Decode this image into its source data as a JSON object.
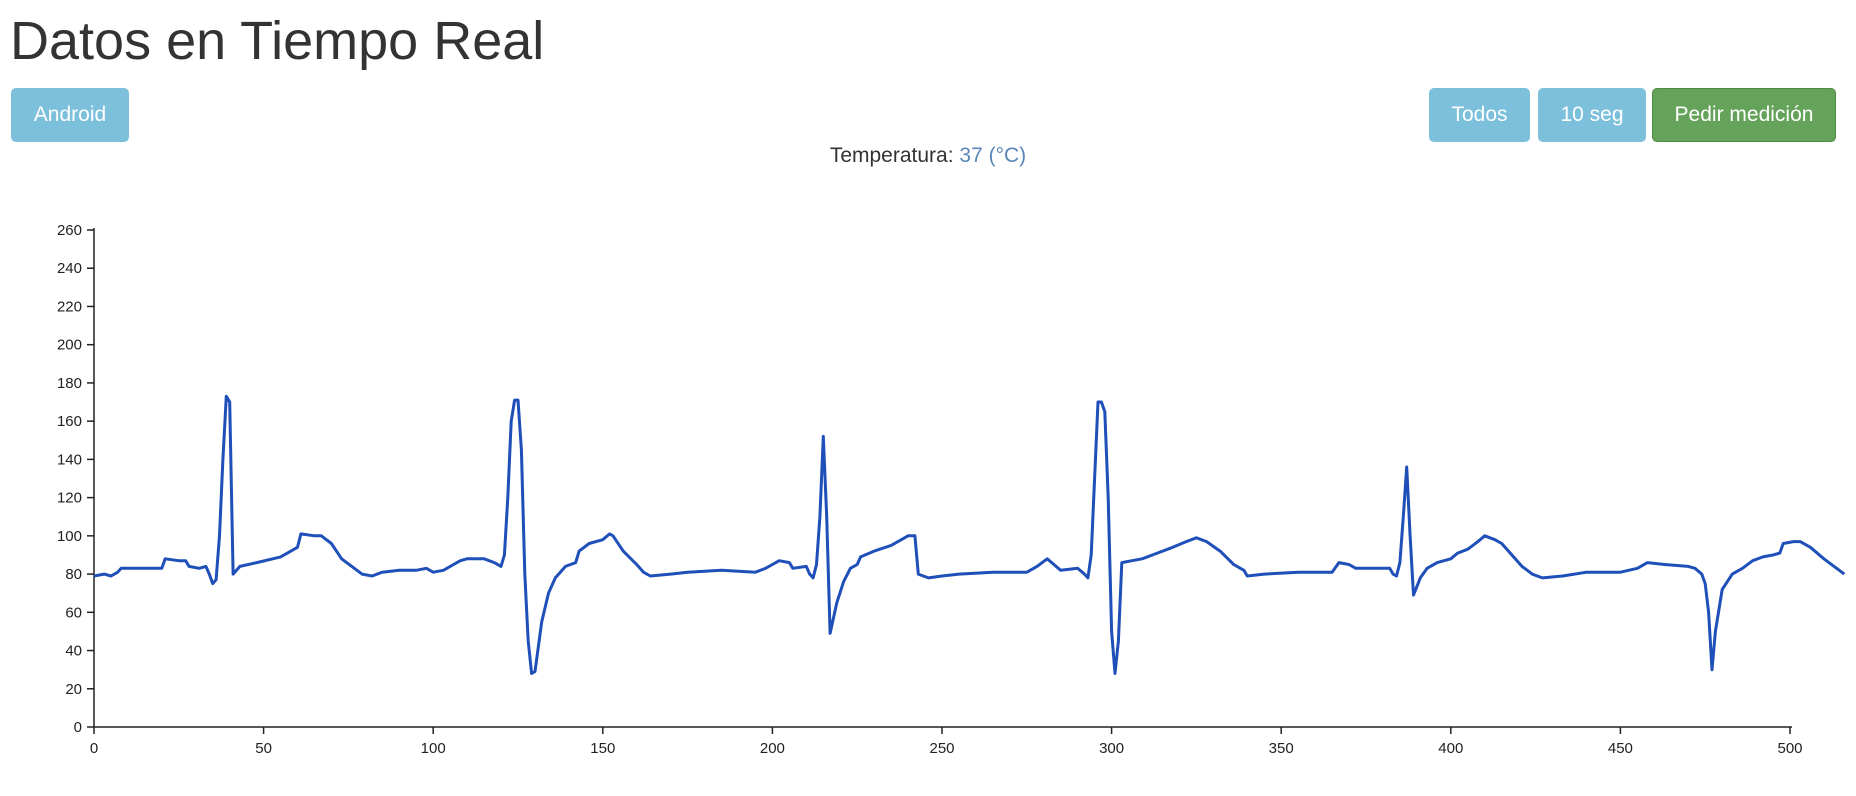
{
  "header": {
    "title": "Datos en Tiempo Real"
  },
  "toolbar": {
    "android_label": "Android",
    "todos_label": "Todos",
    "ten_sec_label": "10 seg",
    "pedir_label": "Pedir medición"
  },
  "temperature": {
    "label": "Temperatura:",
    "value": "37",
    "unit": "(°C)"
  },
  "colors": {
    "info_button": "#7cc0dc",
    "success_button": "#66a35a",
    "line": "#1f4fb8",
    "temp_value": "#5a87b6"
  },
  "chart_data": {
    "type": "line",
    "title": "",
    "xlabel": "",
    "ylabel": "",
    "xlim": [
      0,
      500
    ],
    "ylim": [
      0,
      260
    ],
    "x_ticks": [
      0,
      50,
      100,
      150,
      200,
      250,
      300,
      350,
      400,
      450,
      500
    ],
    "y_ticks": [
      0,
      20,
      40,
      60,
      80,
      100,
      120,
      140,
      160,
      180,
      200,
      220,
      240,
      260
    ],
    "grid": false,
    "series": [
      {
        "points": [
          [
            0,
            79
          ],
          [
            3,
            80
          ],
          [
            5,
            79
          ],
          [
            7,
            81
          ],
          [
            8,
            83
          ],
          [
            10,
            83
          ],
          [
            15,
            83
          ],
          [
            20,
            83
          ],
          [
            21,
            88
          ],
          [
            25,
            87
          ],
          [
            27,
            87
          ],
          [
            28,
            84
          ],
          [
            31,
            83
          ],
          [
            33,
            84
          ],
          [
            34,
            80
          ],
          [
            35,
            75
          ],
          [
            36,
            77
          ],
          [
            37,
            100
          ],
          [
            38,
            140
          ],
          [
            39,
            173
          ],
          [
            40,
            170
          ],
          [
            41,
            80
          ],
          [
            43,
            84
          ],
          [
            48,
            86
          ],
          [
            55,
            89
          ],
          [
            60,
            94
          ],
          [
            61,
            101
          ],
          [
            65,
            100
          ],
          [
            67,
            100
          ],
          [
            70,
            96
          ],
          [
            73,
            88
          ],
          [
            76,
            84
          ],
          [
            79,
            80
          ],
          [
            82,
            79
          ],
          [
            85,
            81
          ],
          [
            90,
            82
          ],
          [
            95,
            82
          ],
          [
            98,
            83
          ],
          [
            100,
            81
          ],
          [
            103,
            82
          ],
          [
            106,
            85
          ],
          [
            108,
            87
          ],
          [
            110,
            88
          ],
          [
            115,
            88
          ],
          [
            118,
            86
          ],
          [
            120,
            84
          ],
          [
            121,
            90
          ],
          [
            122,
            120
          ],
          [
            123,
            160
          ],
          [
            124,
            171
          ],
          [
            125,
            171
          ],
          [
            126,
            145
          ],
          [
            127,
            80
          ],
          [
            128,
            45
          ],
          [
            129,
            28
          ],
          [
            130,
            29
          ],
          [
            132,
            55
          ],
          [
            134,
            70
          ],
          [
            136,
            78
          ],
          [
            139,
            84
          ],
          [
            142,
            86
          ],
          [
            143,
            92
          ],
          [
            146,
            96
          ],
          [
            150,
            98
          ],
          [
            152,
            101
          ],
          [
            153,
            100
          ],
          [
            156,
            92
          ],
          [
            160,
            85
          ],
          [
            162,
            81
          ],
          [
            164,
            79
          ],
          [
            170,
            80
          ],
          [
            175,
            81
          ],
          [
            185,
            82
          ],
          [
            195,
            81
          ],
          [
            198,
            83
          ],
          [
            200,
            85
          ],
          [
            202,
            87
          ],
          [
            205,
            86
          ],
          [
            206,
            83
          ],
          [
            210,
            84
          ],
          [
            211,
            80
          ],
          [
            212,
            78
          ],
          [
            213,
            85
          ],
          [
            214,
            110
          ],
          [
            215,
            152
          ],
          [
            216,
            110
          ],
          [
            217,
            49
          ],
          [
            219,
            65
          ],
          [
            221,
            76
          ],
          [
            223,
            83
          ],
          [
            225,
            85
          ],
          [
            226,
            89
          ],
          [
            230,
            92
          ],
          [
            235,
            95
          ],
          [
            238,
            98
          ],
          [
            240,
            100
          ],
          [
            242,
            100
          ],
          [
            243,
            80
          ],
          [
            246,
            78
          ],
          [
            250,
            79
          ],
          [
            255,
            80
          ],
          [
            265,
            81
          ],
          [
            275,
            81
          ],
          [
            278,
            84
          ],
          [
            281,
            88
          ],
          [
            283,
            85
          ],
          [
            285,
            82
          ],
          [
            290,
            83
          ],
          [
            292,
            80
          ],
          [
            293,
            78
          ],
          [
            294,
            90
          ],
          [
            295,
            130
          ],
          [
            296,
            170
          ],
          [
            297,
            170
          ],
          [
            298,
            165
          ],
          [
            299,
            120
          ],
          [
            300,
            50
          ],
          [
            301,
            28
          ],
          [
            302,
            45
          ],
          [
            303,
            86
          ],
          [
            306,
            87
          ],
          [
            309,
            88
          ],
          [
            312,
            90
          ],
          [
            318,
            94
          ],
          [
            322,
            97
          ],
          [
            325,
            99
          ],
          [
            328,
            97
          ],
          [
            332,
            92
          ],
          [
            336,
            85
          ],
          [
            339,
            82
          ],
          [
            340,
            79
          ],
          [
            345,
            80
          ],
          [
            355,
            81
          ],
          [
            365,
            81
          ],
          [
            367,
            86
          ],
          [
            370,
            85
          ],
          [
            372,
            83
          ],
          [
            375,
            83
          ],
          [
            382,
            83
          ],
          [
            383,
            80
          ],
          [
            384,
            79
          ],
          [
            385,
            86
          ],
          [
            386,
            110
          ],
          [
            387,
            136
          ],
          [
            388,
            100
          ],
          [
            389,
            69
          ],
          [
            391,
            78
          ],
          [
            393,
            83
          ],
          [
            396,
            86
          ],
          [
            400,
            88
          ],
          [
            402,
            91
          ],
          [
            405,
            93
          ],
          [
            408,
            97
          ],
          [
            410,
            100
          ],
          [
            413,
            98
          ],
          [
            415,
            96
          ],
          [
            418,
            90
          ],
          [
            421,
            84
          ],
          [
            424,
            80
          ],
          [
            427,
            78
          ],
          [
            433,
            79
          ],
          [
            440,
            81
          ],
          [
            450,
            81
          ],
          [
            455,
            83
          ],
          [
            458,
            86
          ],
          [
            463,
            85
          ],
          [
            470,
            84
          ],
          [
            472,
            83
          ],
          [
            474,
            80
          ],
          [
            475,
            75
          ],
          [
            476,
            60
          ],
          [
            477,
            30
          ],
          [
            478,
            50
          ],
          [
            480,
            72
          ],
          [
            483,
            80
          ],
          [
            486,
            83
          ],
          [
            489,
            87
          ],
          [
            492,
            89
          ],
          [
            495,
            90
          ],
          [
            497,
            91
          ],
          [
            498,
            96
          ],
          [
            501,
            97
          ],
          [
            503,
            97
          ],
          [
            506,
            94
          ],
          [
            510,
            88
          ],
          [
            513,
            84
          ],
          [
            516,
            80
          ]
        ]
      }
    ]
  }
}
